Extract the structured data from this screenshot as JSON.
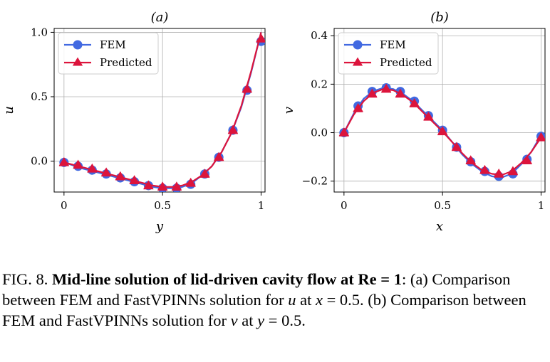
{
  "chart_data": [
    {
      "type": "line",
      "title": "(a)",
      "xlabel": "y",
      "ylabel": "u",
      "xlim": [
        -0.05,
        1.02
      ],
      "ylim": [
        -0.24,
        1.03
      ],
      "xticks": [
        0,
        0.5,
        1
      ],
      "xtick_labels": [
        "0",
        "0.5",
        "1"
      ],
      "yticks": [
        0,
        0.5,
        1
      ],
      "ytick_labels": [
        "0.0",
        "0.5",
        "1.0"
      ],
      "grid": true,
      "legend": "top-left",
      "series": [
        {
          "name": "FEM",
          "color": "#4169e1",
          "marker": "circle",
          "x": [
            0,
            0.0714,
            0.1429,
            0.2143,
            0.2857,
            0.3571,
            0.4286,
            0.5,
            0.5714,
            0.6429,
            0.7143,
            0.7857,
            0.8571,
            0.9286,
            1.0
          ],
          "y": [
            -0.01,
            -0.04,
            -0.07,
            -0.1,
            -0.13,
            -0.16,
            -0.19,
            -0.21,
            -0.21,
            -0.18,
            -0.1,
            0.03,
            0.24,
            0.55,
            0.93
          ],
          "curve": [
            [
              0,
              -0.01
            ],
            [
              0.1,
              -0.06
            ],
            [
              0.2,
              -0.1
            ],
            [
              0.3,
              -0.14
            ],
            [
              0.4,
              -0.18
            ],
            [
              0.45,
              -0.2
            ],
            [
              0.5,
              -0.21
            ],
            [
              0.55,
              -0.21
            ],
            [
              0.6,
              -0.2
            ],
            [
              0.65,
              -0.17
            ],
            [
              0.7,
              -0.11
            ],
            [
              0.75,
              -0.04
            ],
            [
              0.8,
              0.07
            ],
            [
              0.85,
              0.22
            ],
            [
              0.9,
              0.42
            ],
            [
              0.95,
              0.69
            ],
            [
              1.0,
              1.0
            ]
          ]
        },
        {
          "name": "Predicted",
          "color": "#dc143c",
          "marker": "triangle",
          "x": [
            0,
            0.0714,
            0.1429,
            0.2143,
            0.2857,
            0.3571,
            0.4286,
            0.5,
            0.5714,
            0.6429,
            0.7143,
            0.7857,
            0.8571,
            0.9286,
            1.0
          ],
          "y": [
            -0.01,
            -0.03,
            -0.06,
            -0.09,
            -0.12,
            -0.15,
            -0.19,
            -0.2,
            -0.2,
            -0.17,
            -0.1,
            0.03,
            0.24,
            0.56,
            0.95
          ],
          "curve": [
            [
              0,
              -0.01
            ],
            [
              0.1,
              -0.05
            ],
            [
              0.2,
              -0.09
            ],
            [
              0.3,
              -0.13
            ],
            [
              0.4,
              -0.17
            ],
            [
              0.45,
              -0.19
            ],
            [
              0.5,
              -0.2
            ],
            [
              0.55,
              -0.2
            ],
            [
              0.6,
              -0.19
            ],
            [
              0.65,
              -0.16
            ],
            [
              0.7,
              -0.11
            ],
            [
              0.75,
              -0.04
            ],
            [
              0.8,
              0.07
            ],
            [
              0.85,
              0.22
            ],
            [
              0.9,
              0.43
            ],
            [
              0.95,
              0.7
            ],
            [
              1.0,
              1.0
            ]
          ]
        }
      ]
    },
    {
      "type": "line",
      "title": "(b)",
      "xlabel": "x",
      "ylabel": "v",
      "xlim": [
        -0.05,
        1.02
      ],
      "ylim": [
        -0.245,
        0.43
      ],
      "xticks": [
        0,
        0.5,
        1
      ],
      "xtick_labels": [
        "0",
        "0.5",
        "1"
      ],
      "yticks": [
        -0.2,
        0,
        0.2,
        0.4
      ],
      "ytick_labels": [
        "−0.2",
        "0.0",
        "0.2",
        "0.4"
      ],
      "grid": true,
      "legend": "top-left",
      "series": [
        {
          "name": "FEM",
          "color": "#4169e1",
          "marker": "circle",
          "x": [
            0,
            0.0714,
            0.1429,
            0.2143,
            0.2857,
            0.3571,
            0.4286,
            0.5,
            0.5714,
            0.6429,
            0.7143,
            0.7857,
            0.8571,
            0.9286,
            1.0
          ],
          "y": [
            0.0,
            0.11,
            0.17,
            0.185,
            0.17,
            0.13,
            0.07,
            0.01,
            -0.06,
            -0.12,
            -0.16,
            -0.18,
            -0.17,
            -0.11,
            -0.015
          ],
          "curve": [
            [
              0,
              0.0
            ],
            [
              0.05,
              0.08
            ],
            [
              0.1,
              0.14
            ],
            [
              0.15,
              0.172
            ],
            [
              0.2,
              0.185
            ],
            [
              0.25,
              0.18
            ],
            [
              0.3,
              0.16
            ],
            [
              0.35,
              0.13
            ],
            [
              0.4,
              0.09
            ],
            [
              0.45,
              0.05
            ],
            [
              0.5,
              0.01
            ],
            [
              0.55,
              -0.04
            ],
            [
              0.6,
              -0.09
            ],
            [
              0.65,
              -0.13
            ],
            [
              0.7,
              -0.16
            ],
            [
              0.75,
              -0.18
            ],
            [
              0.8,
              -0.185
            ],
            [
              0.85,
              -0.17
            ],
            [
              0.9,
              -0.13
            ],
            [
              0.95,
              -0.08
            ],
            [
              1.0,
              -0.01
            ]
          ]
        },
        {
          "name": "Predicted",
          "color": "#dc143c",
          "marker": "triangle",
          "x": [
            0,
            0.0714,
            0.1429,
            0.2143,
            0.2857,
            0.3571,
            0.4286,
            0.5,
            0.5714,
            0.6429,
            0.7143,
            0.7857,
            0.8571,
            0.9286,
            1.0
          ],
          "y": [
            0.0,
            0.1,
            0.16,
            0.18,
            0.16,
            0.12,
            0.065,
            0.005,
            -0.06,
            -0.115,
            -0.155,
            -0.17,
            -0.16,
            -0.115,
            -0.02
          ],
          "curve": [
            [
              0,
              0.0
            ],
            [
              0.05,
              0.075
            ],
            [
              0.1,
              0.13
            ],
            [
              0.15,
              0.165
            ],
            [
              0.2,
              0.18
            ],
            [
              0.25,
              0.175
            ],
            [
              0.3,
              0.155
            ],
            [
              0.35,
              0.125
            ],
            [
              0.4,
              0.085
            ],
            [
              0.45,
              0.045
            ],
            [
              0.5,
              0.005
            ],
            [
              0.55,
              -0.04
            ],
            [
              0.6,
              -0.085
            ],
            [
              0.65,
              -0.125
            ],
            [
              0.7,
              -0.155
            ],
            [
              0.75,
              -0.17
            ],
            [
              0.8,
              -0.175
            ],
            [
              0.85,
              -0.16
            ],
            [
              0.9,
              -0.125
            ],
            [
              0.95,
              -0.08
            ],
            [
              1.0,
              -0.02
            ]
          ]
        }
      ]
    }
  ],
  "caption": {
    "label": "FIG. 8.",
    "bold": "Mid-line solution of lid-driven cavity flow at Re = 1",
    "p1": ": (a) Comparison between FEM and FastVPINNs solution for ",
    "v1": "u",
    "p2": " at ",
    "v2": "x",
    "p3": " = 0.5. (b) Comparison between FEM and FastVPINNs solution for ",
    "v3": "v",
    "p4": " at ",
    "v4": "y",
    "p5": " = 0.5."
  }
}
